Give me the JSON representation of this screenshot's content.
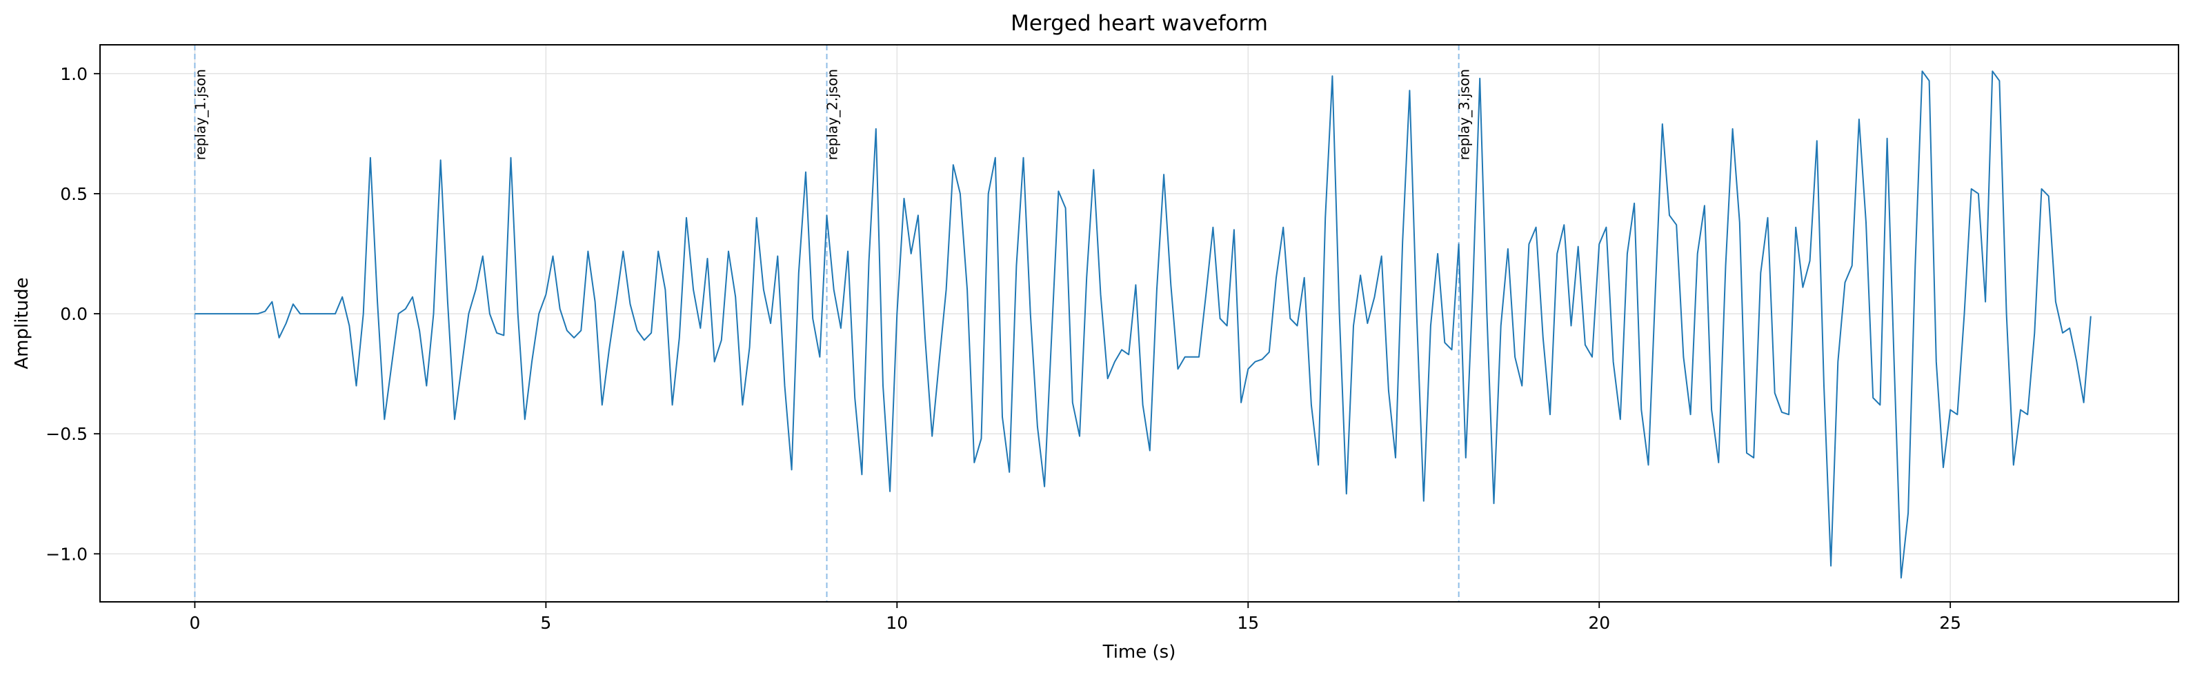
{
  "chart_data": {
    "type": "line",
    "title": "Merged heart waveform",
    "xlabel": "Time (s)",
    "ylabel": "Amplitude",
    "xlim": [
      -1.35,
      28.25
    ],
    "ylim": [
      -1.2,
      1.12
    ],
    "x_ticks": [
      0,
      5,
      10,
      15,
      20,
      25
    ],
    "y_ticks": [
      -1.0,
      -0.5,
      0.0,
      0.5,
      1.0
    ],
    "x_tick_labels": [
      "0",
      "5",
      "10",
      "15",
      "20",
      "25"
    ],
    "y_tick_labels": [
      "−1.0",
      "−0.5",
      "0.0",
      "0.5",
      "1.0"
    ],
    "grid": true,
    "line_color": "#1f77b4",
    "markers": [
      {
        "x": 0,
        "label": "replay_1.json"
      },
      {
        "x": 9,
        "label": "replay_2.json"
      },
      {
        "x": 18,
        "label": "replay_3.json"
      }
    ],
    "series": [
      {
        "points": [
          [
            0,
            0
          ],
          [
            0.2,
            0
          ],
          [
            0.4,
            0
          ],
          [
            0.6,
            0
          ],
          [
            0.8,
            0
          ],
          [
            0.9,
            0.0
          ],
          [
            1.0,
            0.01
          ],
          [
            1.1,
            0.05
          ],
          [
            1.2,
            -0.1
          ],
          [
            1.3,
            -0.04
          ],
          [
            1.4,
            0.04
          ],
          [
            1.5,
            0.0
          ],
          [
            1.6,
            0.0
          ],
          [
            1.8,
            0.0
          ],
          [
            1.9,
            0.0
          ],
          [
            2.0,
            0.0
          ],
          [
            2.1,
            0.07
          ],
          [
            2.2,
            -0.05
          ],
          [
            2.3,
            -0.3
          ],
          [
            2.4,
            0.0
          ],
          [
            2.5,
            0.65
          ],
          [
            2.6,
            0.05
          ],
          [
            2.7,
            -0.44
          ],
          [
            2.8,
            -0.22
          ],
          [
            2.9,
            0.0
          ],
          [
            3.0,
            0.02
          ],
          [
            3.1,
            0.07
          ],
          [
            3.2,
            -0.07
          ],
          [
            3.3,
            -0.3
          ],
          [
            3.4,
            0.0
          ],
          [
            3.5,
            0.64
          ],
          [
            3.6,
            0.05
          ],
          [
            3.7,
            -0.44
          ],
          [
            3.8,
            -0.22
          ],
          [
            3.9,
            0.0
          ],
          [
            4.0,
            0.1
          ],
          [
            4.1,
            0.24
          ],
          [
            4.2,
            0.0
          ],
          [
            4.3,
            -0.08
          ],
          [
            4.4,
            -0.09
          ],
          [
            4.5,
            0.65
          ],
          [
            4.6,
            0.0
          ],
          [
            4.7,
            -0.44
          ],
          [
            4.8,
            -0.2
          ],
          [
            4.9,
            0.0
          ],
          [
            5.0,
            0.08
          ],
          [
            5.1,
            0.24
          ],
          [
            5.2,
            0.02
          ],
          [
            5.3,
            -0.07
          ],
          [
            5.4,
            -0.1
          ],
          [
            5.5,
            -0.07
          ],
          [
            5.6,
            0.26
          ],
          [
            5.7,
            0.05
          ],
          [
            5.8,
            -0.38
          ],
          [
            5.9,
            -0.15
          ],
          [
            6.0,
            0.05
          ],
          [
            6.1,
            0.26
          ],
          [
            6.2,
            0.04
          ],
          [
            6.3,
            -0.07
          ],
          [
            6.4,
            -0.11
          ],
          [
            6.5,
            -0.08
          ],
          [
            6.6,
            0.26
          ],
          [
            6.7,
            0.1
          ],
          [
            6.8,
            -0.38
          ],
          [
            6.9,
            -0.1
          ],
          [
            7.0,
            0.4
          ],
          [
            7.1,
            0.1
          ],
          [
            7.2,
            -0.06
          ],
          [
            7.3,
            0.23
          ],
          [
            7.4,
            -0.2
          ],
          [
            7.5,
            -0.11
          ],
          [
            7.6,
            0.26
          ],
          [
            7.7,
            0.07
          ],
          [
            7.8,
            -0.38
          ],
          [
            7.9,
            -0.14
          ],
          [
            8.0,
            0.4
          ],
          [
            8.1,
            0.1
          ],
          [
            8.2,
            -0.04
          ],
          [
            8.3,
            0.24
          ],
          [
            8.4,
            -0.3
          ],
          [
            8.5,
            -0.65
          ],
          [
            8.6,
            0.17
          ],
          [
            8.7,
            0.59
          ],
          [
            8.8,
            -0.02
          ],
          [
            8.9,
            -0.18
          ],
          [
            9.0,
            0.41
          ],
          [
            9.1,
            0.1
          ],
          [
            9.2,
            -0.06
          ],
          [
            9.3,
            0.26
          ],
          [
            9.4,
            -0.35
          ],
          [
            9.5,
            -0.67
          ],
          [
            9.6,
            0.22
          ],
          [
            9.7,
            0.77
          ],
          [
            9.8,
            -0.3
          ],
          [
            9.9,
            -0.74
          ],
          [
            10.0,
            0.0
          ],
          [
            10.1,
            0.48
          ],
          [
            10.2,
            0.25
          ],
          [
            10.3,
            0.41
          ],
          [
            10.4,
            -0.1
          ],
          [
            10.5,
            -0.51
          ],
          [
            10.6,
            -0.2
          ],
          [
            10.7,
            0.1
          ],
          [
            10.8,
            0.62
          ],
          [
            10.9,
            0.5
          ],
          [
            11.0,
            0.1
          ],
          [
            11.1,
            -0.62
          ],
          [
            11.2,
            -0.52
          ],
          [
            11.3,
            0.5
          ],
          [
            11.4,
            0.65
          ],
          [
            11.5,
            -0.43
          ],
          [
            11.6,
            -0.66
          ],
          [
            11.7,
            0.2
          ],
          [
            11.8,
            0.65
          ],
          [
            11.9,
            0.0
          ],
          [
            12.0,
            -0.47
          ],
          [
            12.1,
            -0.72
          ],
          [
            12.2,
            -0.1
          ],
          [
            12.3,
            0.51
          ],
          [
            12.4,
            0.44
          ],
          [
            12.5,
            -0.37
          ],
          [
            12.6,
            -0.51
          ],
          [
            12.7,
            0.15
          ],
          [
            12.8,
            0.6
          ],
          [
            12.9,
            0.08
          ],
          [
            13.0,
            -0.27
          ],
          [
            13.1,
            -0.2
          ],
          [
            13.2,
            -0.15
          ],
          [
            13.3,
            -0.17
          ],
          [
            13.4,
            0.12
          ],
          [
            13.5,
            -0.38
          ],
          [
            13.6,
            -0.57
          ],
          [
            13.7,
            0.1
          ],
          [
            13.8,
            0.58
          ],
          [
            13.9,
            0.12
          ],
          [
            14.0,
            -0.23
          ],
          [
            14.1,
            -0.18
          ],
          [
            14.2,
            -0.18
          ],
          [
            14.3,
            -0.18
          ],
          [
            14.4,
            0.08
          ],
          [
            14.5,
            0.36
          ],
          [
            14.6,
            -0.02
          ],
          [
            14.7,
            -0.05
          ],
          [
            14.8,
            0.35
          ],
          [
            14.9,
            -0.37
          ],
          [
            15.0,
            -0.23
          ],
          [
            15.1,
            -0.2
          ],
          [
            15.2,
            -0.19
          ],
          [
            15.3,
            -0.16
          ],
          [
            15.4,
            0.15
          ],
          [
            15.5,
            0.36
          ],
          [
            15.6,
            -0.02
          ],
          [
            15.7,
            -0.05
          ],
          [
            15.8,
            0.15
          ],
          [
            15.9,
            -0.38
          ],
          [
            16.0,
            -0.63
          ],
          [
            16.1,
            0.4
          ],
          [
            16.2,
            0.99
          ],
          [
            16.3,
            0.0
          ],
          [
            16.4,
            -0.75
          ],
          [
            16.5,
            -0.05
          ],
          [
            16.6,
            0.16
          ],
          [
            16.7,
            -0.04
          ],
          [
            16.8,
            0.07
          ],
          [
            16.9,
            0.24
          ],
          [
            17.0,
            -0.32
          ],
          [
            17.1,
            -0.6
          ],
          [
            17.2,
            0.3
          ],
          [
            17.3,
            0.93
          ],
          [
            17.4,
            0.0
          ],
          [
            17.5,
            -0.78
          ],
          [
            17.6,
            -0.05
          ],
          [
            17.7,
            0.25
          ],
          [
            17.8,
            -0.12
          ],
          [
            17.9,
            -0.15
          ],
          [
            18.0,
            0.29
          ],
          [
            18.1,
            -0.6
          ],
          [
            18.2,
            0.1
          ],
          [
            18.3,
            0.98
          ],
          [
            18.4,
            0.0
          ],
          [
            18.5,
            -0.79
          ],
          [
            18.6,
            -0.05
          ],
          [
            18.7,
            0.27
          ],
          [
            18.8,
            -0.18
          ],
          [
            18.9,
            -0.3
          ],
          [
            19.0,
            0.29
          ],
          [
            19.1,
            0.36
          ],
          [
            19.2,
            -0.1
          ],
          [
            19.3,
            -0.42
          ],
          [
            19.4,
            0.25
          ],
          [
            19.5,
            0.37
          ],
          [
            19.6,
            -0.05
          ],
          [
            19.7,
            0.28
          ],
          [
            19.8,
            -0.13
          ],
          [
            19.9,
            -0.18
          ],
          [
            20.0,
            0.29
          ],
          [
            20.1,
            0.36
          ],
          [
            20.2,
            -0.2
          ],
          [
            20.3,
            -0.44
          ],
          [
            20.4,
            0.25
          ],
          [
            20.5,
            0.46
          ],
          [
            20.6,
            -0.4
          ],
          [
            20.7,
            -0.63
          ],
          [
            20.8,
            0.1
          ],
          [
            20.9,
            0.79
          ],
          [
            21.0,
            0.41
          ],
          [
            21.1,
            0.37
          ],
          [
            21.2,
            -0.18
          ],
          [
            21.3,
            -0.42
          ],
          [
            21.4,
            0.25
          ],
          [
            21.5,
            0.45
          ],
          [
            21.6,
            -0.4
          ],
          [
            21.7,
            -0.62
          ],
          [
            21.8,
            0.2
          ],
          [
            21.9,
            0.77
          ],
          [
            22.0,
            0.38
          ],
          [
            22.1,
            -0.58
          ],
          [
            22.2,
            -0.6
          ],
          [
            22.3,
            0.17
          ],
          [
            22.4,
            0.4
          ],
          [
            22.5,
            -0.33
          ],
          [
            22.6,
            -0.41
          ],
          [
            22.7,
            -0.42
          ],
          [
            22.8,
            0.36
          ],
          [
            22.9,
            0.11
          ],
          [
            23.0,
            0.22
          ],
          [
            23.1,
            0.72
          ],
          [
            23.2,
            -0.3
          ],
          [
            23.3,
            -1.05
          ],
          [
            23.4,
            -0.2
          ],
          [
            23.5,
            0.13
          ],
          [
            23.6,
            0.2
          ],
          [
            23.7,
            0.81
          ],
          [
            23.8,
            0.38
          ],
          [
            23.9,
            -0.35
          ],
          [
            24.0,
            -0.38
          ],
          [
            24.1,
            0.73
          ],
          [
            24.2,
            -0.2
          ],
          [
            24.3,
            -1.1
          ],
          [
            24.4,
            -0.83
          ],
          [
            24.5,
            0.2
          ],
          [
            24.6,
            1.01
          ],
          [
            24.7,
            0.97
          ],
          [
            24.8,
            -0.2
          ],
          [
            24.9,
            -0.64
          ],
          [
            25.0,
            -0.4
          ],
          [
            25.1,
            -0.42
          ],
          [
            25.2,
            0.0
          ],
          [
            25.3,
            0.52
          ],
          [
            25.4,
            0.5
          ],
          [
            25.5,
            0.05
          ],
          [
            25.6,
            1.01
          ],
          [
            25.7,
            0.97
          ],
          [
            25.8,
            0.0
          ],
          [
            25.9,
            -0.63
          ],
          [
            26.0,
            -0.4
          ],
          [
            26.1,
            -0.42
          ],
          [
            26.2,
            -0.08
          ],
          [
            26.3,
            0.52
          ],
          [
            26.4,
            0.49
          ],
          [
            26.5,
            0.05
          ],
          [
            26.6,
            -0.08
          ],
          [
            26.7,
            -0.06
          ],
          [
            26.8,
            -0.2
          ],
          [
            26.9,
            -0.37
          ],
          [
            27.0,
            -0.01
          ]
        ]
      }
    ]
  }
}
